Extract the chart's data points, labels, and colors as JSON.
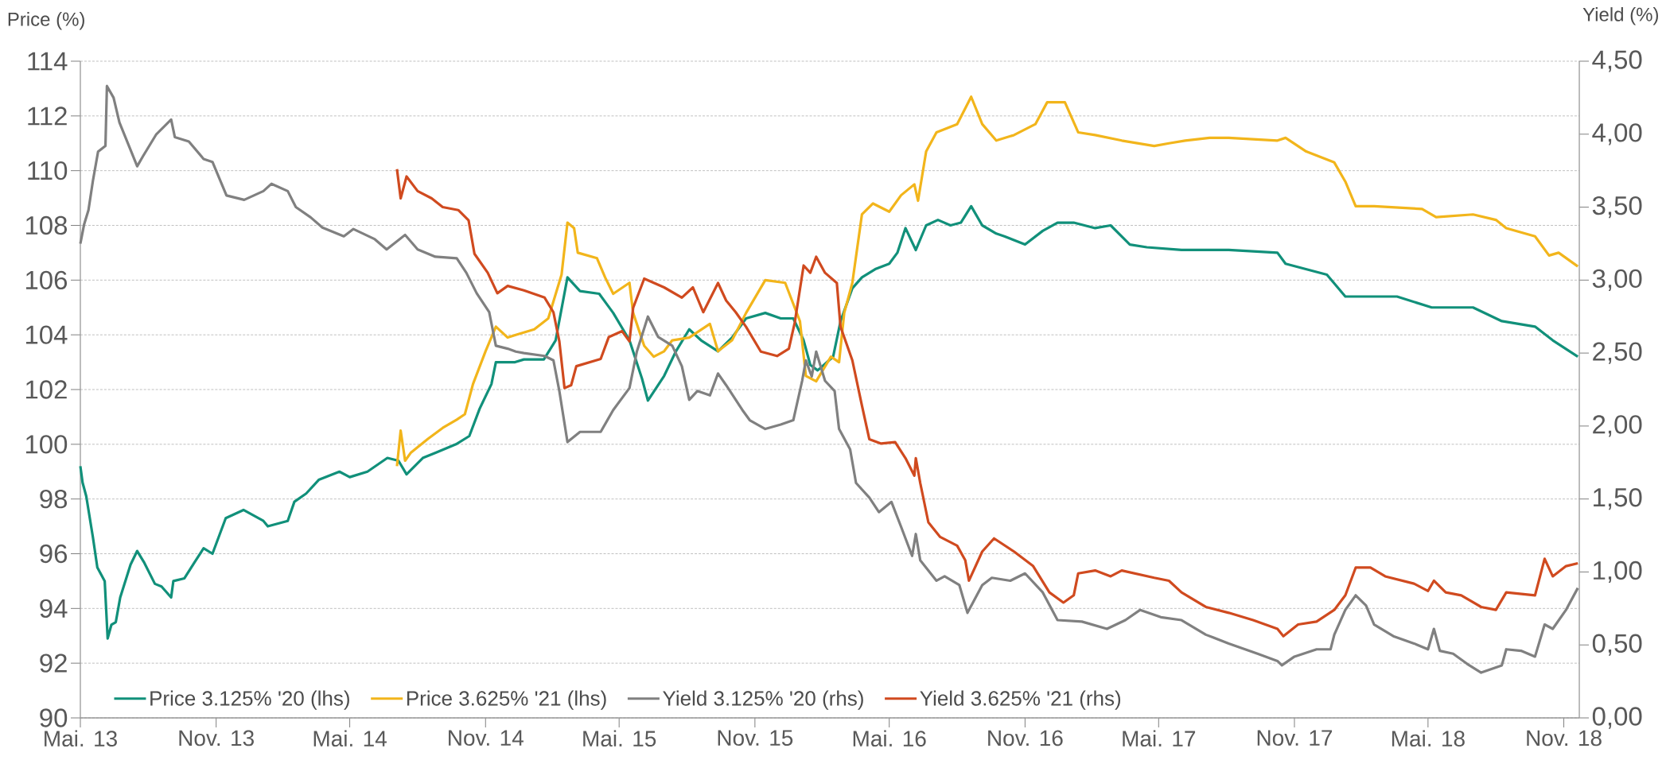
{
  "chart_data": {
    "type": "line",
    "ylabel": "Price (%)",
    "y2label": "Yield (%)",
    "xlim": [
      "2013-05-01",
      "2018-11-22"
    ],
    "xticks": [
      {
        "value": "2013-05-01",
        "label": "Mai. 13"
      },
      {
        "value": "2013-11-01",
        "label": "Nov. 13"
      },
      {
        "value": "2014-05-01",
        "label": "Mai. 14"
      },
      {
        "value": "2014-11-01",
        "label": "Nov. 14"
      },
      {
        "value": "2015-05-01",
        "label": "Mai. 15"
      },
      {
        "value": "2015-11-01",
        "label": "Nov. 15"
      },
      {
        "value": "2016-05-01",
        "label": "Mai. 16"
      },
      {
        "value": "2016-11-01",
        "label": "Nov. 16"
      },
      {
        "value": "2017-05-01",
        "label": "Mai. 17"
      },
      {
        "value": "2017-11-01",
        "label": "Nov. 17"
      },
      {
        "value": "2018-05-01",
        "label": "Mai. 18"
      },
      {
        "value": "2018-11-01",
        "label": "Nov. 18"
      }
    ],
    "ylim": [
      90,
      114
    ],
    "yticks": [
      90,
      92,
      94,
      96,
      98,
      100,
      102,
      104,
      106,
      108,
      110,
      112,
      114
    ],
    "y2lim": [
      0,
      4.5
    ],
    "y2ticks": [
      {
        "value": 0,
        "label": "0,00"
      },
      {
        "value": 0.5,
        "label": "0,50"
      },
      {
        "value": 1,
        "label": "1,00"
      },
      {
        "value": 1.5,
        "label": "1,50"
      },
      {
        "value": 2,
        "label": "2,00"
      },
      {
        "value": 2.5,
        "label": "2,50"
      },
      {
        "value": 3,
        "label": "3,00"
      },
      {
        "value": 3.5,
        "label": "3,50"
      },
      {
        "value": 4,
        "label": "4,00"
      },
      {
        "value": 4.5,
        "label": "4,50"
      }
    ],
    "grid": "y",
    "legend": "bottom left",
    "series": [
      {
        "name": "Price 3.125% '20 (lhs)",
        "color": "#11907a",
        "axis": "y",
        "x": [
          "2013-05-01",
          "2013-05-04",
          "2013-05-09",
          "2013-05-18",
          "2013-05-24",
          "2013-06-03",
          "2013-06-07",
          "2013-06-12",
          "2013-06-18",
          "2013-06-24",
          "2013-07-08",
          "2013-07-17",
          "2013-07-26",
          "2013-08-10",
          "2013-08-19",
          "2013-09-01",
          "2013-09-04",
          "2013-09-19",
          "2013-10-03",
          "2013-10-15",
          "2013-10-27",
          "2013-11-14",
          "2013-12-08",
          "2014-01-04",
          "2014-01-10",
          "2014-02-06",
          "2014-02-15",
          "2014-03-03",
          "2014-03-20",
          "2014-04-17",
          "2014-05-01",
          "2014-05-25",
          "2014-06-21",
          "2014-07-06",
          "2014-07-17",
          "2014-08-08",
          "2014-08-26",
          "2014-09-22",
          "2014-10-10",
          "2014-10-24",
          "2014-11-09",
          "2014-11-15",
          "2014-12-11",
          "2014-12-23",
          "2015-01-19",
          "2015-02-04",
          "2015-02-20",
          "2015-03-09",
          "2015-04-04",
          "2015-04-23",
          "2015-05-15",
          "2015-06-01",
          "2015-06-09",
          "2015-07-01",
          "2015-07-17",
          "2015-08-04",
          "2015-08-20",
          "2015-09-12",
          "2015-10-01",
          "2015-10-20",
          "2015-11-15",
          "2015-12-06",
          "2015-12-23",
          "2016-01-06",
          "2016-01-15",
          "2016-01-25",
          "2016-02-15",
          "2016-02-25",
          "2016-03-12",
          "2016-03-25",
          "2016-04-12",
          "2016-05-01",
          "2016-05-12",
          "2016-05-23",
          "2016-06-06",
          "2016-06-20",
          "2016-07-06",
          "2016-07-23",
          "2016-08-06",
          "2016-08-20",
          "2016-09-04",
          "2016-09-23",
          "2016-10-04",
          "2016-11-01",
          "2016-11-25",
          "2016-12-15",
          "2017-01-06",
          "2017-02-04",
          "2017-02-25",
          "2017-03-23",
          "2017-04-15",
          "2017-06-01",
          "2017-08-04",
          "2017-10-09",
          "2017-10-20",
          "2017-12-15",
          "2018-01-09",
          "2018-02-17",
          "2018-03-20",
          "2018-05-06",
          "2018-07-01",
          "2018-08-09",
          "2018-09-23",
          "2018-10-17",
          "2018-11-20"
        ],
        "values": [
          99.2,
          98.6,
          98.1,
          96.6,
          95.5,
          95.0,
          92.9,
          93.4,
          93.5,
          94.4,
          95.6,
          96.1,
          95.7,
          94.9,
          94.8,
          94.4,
          95.0,
          95.1,
          95.7,
          96.2,
          96.0,
          97.3,
          97.6,
          97.2,
          97.0,
          97.2,
          97.9,
          98.2,
          98.7,
          99.0,
          98.8,
          99.0,
          99.5,
          99.4,
          98.9,
          99.5,
          99.7,
          100.0,
          100.3,
          101.3,
          102.2,
          103.0,
          103.0,
          103.1,
          103.1,
          103.8,
          106.1,
          105.6,
          105.5,
          104.8,
          103.8,
          102.4,
          101.6,
          102.5,
          103.4,
          104.2,
          103.8,
          103.4,
          103.9,
          104.6,
          104.8,
          104.6,
          104.6,
          103.8,
          102.9,
          102.7,
          103.2,
          104.5,
          105.7,
          106.1,
          106.4,
          106.6,
          107.0,
          107.9,
          107.1,
          108.0,
          108.2,
          108.0,
          108.1,
          108.7,
          108.0,
          107.7,
          107.6,
          107.3,
          107.8,
          108.1,
          108.1,
          107.9,
          108.0,
          107.3,
          107.2,
          107.1,
          107.1,
          107.0,
          106.6,
          106.2,
          105.4,
          105.4,
          105.4,
          105.0,
          105.0,
          104.5,
          104.3,
          103.8,
          103.2
        ]
      },
      {
        "name": "Price 3.625% '21 (lhs)",
        "color": "#f2b51b",
        "axis": "y",
        "x": [
          "2014-07-04",
          "2014-07-09",
          "2014-07-15",
          "2014-07-23",
          "2014-08-15",
          "2014-09-04",
          "2014-09-23",
          "2014-10-04",
          "2014-10-15",
          "2014-11-01",
          "2014-11-15",
          "2014-12-01",
          "2014-12-12",
          "2015-01-06",
          "2015-01-25",
          "2015-02-12",
          "2015-02-20",
          "2015-03-01",
          "2015-03-06",
          "2015-04-01",
          "2015-04-12",
          "2015-04-23",
          "2015-05-15",
          "2015-05-20",
          "2015-06-04",
          "2015-06-17",
          "2015-07-01",
          "2015-07-12",
          "2015-08-04",
          "2015-09-01",
          "2015-09-12",
          "2015-10-01",
          "2015-10-20",
          "2015-11-15",
          "2015-12-12",
          "2016-01-01",
          "2016-01-09",
          "2016-01-23",
          "2016-02-12",
          "2016-02-23",
          "2016-03-01",
          "2016-03-12",
          "2016-03-25",
          "2016-04-09",
          "2016-05-01",
          "2016-05-17",
          "2016-06-04",
          "2016-06-09",
          "2016-06-20",
          "2016-07-04",
          "2016-08-01",
          "2016-08-20",
          "2016-09-04",
          "2016-09-23",
          "2016-10-17",
          "2016-11-15",
          "2016-12-01",
          "2016-12-25",
          "2017-01-12",
          "2017-02-04",
          "2017-03-12",
          "2017-04-25",
          "2017-05-15",
          "2017-06-06",
          "2017-07-09",
          "2017-08-04",
          "2017-10-09",
          "2017-10-20",
          "2017-11-17",
          "2017-12-25",
          "2018-01-09",
          "2018-01-23",
          "2018-02-17",
          "2018-04-23",
          "2018-05-12",
          "2018-07-01",
          "2018-08-01",
          "2018-08-15",
          "2018-09-23",
          "2018-10-12",
          "2018-10-25",
          "2018-11-20"
        ],
        "values": [
          99.2,
          100.5,
          99.4,
          99.7,
          100.2,
          100.6,
          100.9,
          101.1,
          102.2,
          103.4,
          104.3,
          103.9,
          104.0,
          104.2,
          104.6,
          106.2,
          108.1,
          107.9,
          107.0,
          106.8,
          106.1,
          105.5,
          105.9,
          104.8,
          103.6,
          103.2,
          103.4,
          103.8,
          103.9,
          104.4,
          103.4,
          103.8,
          104.8,
          106.0,
          105.9,
          104.5,
          102.5,
          102.3,
          103.2,
          103.0,
          104.8,
          105.9,
          108.4,
          108.8,
          108.5,
          109.1,
          109.5,
          108.9,
          110.7,
          111.4,
          111.7,
          112.7,
          111.7,
          111.1,
          111.3,
          111.7,
          112.5,
          112.5,
          111.4,
          111.3,
          111.1,
          110.9,
          111.0,
          111.1,
          111.2,
          111.2,
          111.1,
          111.2,
          110.7,
          110.3,
          109.6,
          108.7,
          108.7,
          108.6,
          108.3,
          108.4,
          108.2,
          107.9,
          107.6,
          106.9,
          107.0,
          106.5
        ]
      },
      {
        "name": "Yield 3.125% '20 (rhs)",
        "color": "#808080",
        "axis": "y2",
        "x": [
          "2013-05-01",
          "2013-05-06",
          "2013-05-12",
          "2013-05-18",
          "2013-05-25",
          "2013-06-04",
          "2013-06-06",
          "2013-06-15",
          "2013-06-23",
          "2013-07-09",
          "2013-07-17",
          "2013-07-25",
          "2013-08-12",
          "2013-09-01",
          "2013-09-06",
          "2013-09-25",
          "2013-10-15",
          "2013-10-27",
          "2013-11-15",
          "2013-12-09",
          "2014-01-04",
          "2014-01-15",
          "2014-02-06",
          "2014-02-17",
          "2014-03-09",
          "2014-03-25",
          "2014-04-23",
          "2014-05-06",
          "2014-06-04",
          "2014-06-20",
          "2014-07-15",
          "2014-08-01",
          "2014-08-25",
          "2014-09-23",
          "2014-10-06",
          "2014-10-20",
          "2014-11-06",
          "2014-11-15",
          "2014-12-01",
          "2014-12-12",
          "2014-12-23",
          "2015-01-20",
          "2015-02-01",
          "2015-02-09",
          "2015-02-20",
          "2015-03-09",
          "2015-04-06",
          "2015-04-23",
          "2015-05-15",
          "2015-05-25",
          "2015-06-09",
          "2015-06-23",
          "2015-07-12",
          "2015-07-25",
          "2015-08-04",
          "2015-08-15",
          "2015-09-01",
          "2015-09-12",
          "2015-09-23",
          "2015-10-15",
          "2015-10-25",
          "2015-11-15",
          "2015-12-06",
          "2015-12-23",
          "2016-01-04",
          "2016-01-09",
          "2016-01-17",
          "2016-01-23",
          "2016-02-04",
          "2016-02-17",
          "2016-02-23",
          "2016-03-09",
          "2016-03-17",
          "2016-04-04",
          "2016-04-17",
          "2016-05-04",
          "2016-05-17",
          "2016-06-01",
          "2016-06-06",
          "2016-06-12",
          "2016-07-04",
          "2016-07-15",
          "2016-08-04",
          "2016-08-15",
          "2016-09-04",
          "2016-09-17",
          "2016-10-12",
          "2016-11-01",
          "2016-11-25",
          "2016-12-15",
          "2017-01-17",
          "2017-02-20",
          "2017-03-17",
          "2017-04-06",
          "2017-05-04",
          "2017-06-01",
          "2017-07-04",
          "2017-08-04",
          "2017-09-12",
          "2017-10-09",
          "2017-10-15",
          "2017-11-01",
          "2017-12-01",
          "2017-12-20",
          "2017-12-25",
          "2018-01-09",
          "2018-01-23",
          "2018-02-06",
          "2018-02-17",
          "2018-03-15",
          "2018-04-12",
          "2018-05-01",
          "2018-05-09",
          "2018-05-17",
          "2018-06-04",
          "2018-06-23",
          "2018-07-12",
          "2018-08-09",
          "2018-08-15",
          "2018-09-04",
          "2018-09-23",
          "2018-10-06",
          "2018-10-17",
          "2018-11-04",
          "2018-11-20"
        ],
        "values": [
          3.25,
          3.38,
          3.48,
          3.68,
          3.88,
          3.92,
          4.33,
          4.25,
          4.08,
          3.88,
          3.78,
          3.85,
          4.0,
          4.1,
          3.98,
          3.95,
          3.83,
          3.81,
          3.58,
          3.55,
          3.61,
          3.66,
          3.61,
          3.5,
          3.43,
          3.36,
          3.3,
          3.35,
          3.28,
          3.21,
          3.31,
          3.21,
          3.16,
          3.15,
          3.05,
          2.91,
          2.78,
          2.55,
          2.53,
          2.51,
          2.5,
          2.48,
          2.45,
          2.24,
          1.89,
          1.96,
          1.96,
          2.11,
          2.26,
          2.51,
          2.75,
          2.61,
          2.55,
          2.41,
          2.18,
          2.24,
          2.21,
          2.36,
          2.28,
          2.11,
          2.04,
          1.98,
          2.01,
          2.04,
          2.31,
          2.45,
          2.34,
          2.51,
          2.31,
          2.24,
          1.98,
          1.84,
          1.61,
          1.51,
          1.41,
          1.48,
          1.31,
          1.11,
          1.26,
          1.08,
          0.94,
          0.97,
          0.91,
          0.72,
          0.91,
          0.96,
          0.94,
          0.99,
          0.86,
          0.67,
          0.66,
          0.61,
          0.67,
          0.74,
          0.69,
          0.67,
          0.57,
          0.51,
          0.44,
          0.39,
          0.36,
          0.42,
          0.47,
          0.47,
          0.57,
          0.74,
          0.84,
          0.77,
          0.64,
          0.56,
          0.51,
          0.47,
          0.61,
          0.46,
          0.44,
          0.37,
          0.31,
          0.36,
          0.47,
          0.46,
          0.42,
          0.64,
          0.61,
          0.74,
          0.89
        ]
      },
      {
        "name": "Yield 3.625% '21 (rhs)",
        "color": "#d04a1f",
        "axis": "y2",
        "x": [
          "2014-07-04",
          "2014-07-09",
          "2014-07-17",
          "2014-08-01",
          "2014-08-20",
          "2014-09-04",
          "2014-09-25",
          "2014-10-09",
          "2014-10-17",
          "2014-11-04",
          "2014-11-17",
          "2014-12-01",
          "2014-12-23",
          "2015-01-20",
          "2015-02-01",
          "2015-02-09",
          "2015-02-16",
          "2015-02-25",
          "2015-03-04",
          "2015-04-06",
          "2015-04-17",
          "2015-05-05",
          "2015-05-15",
          "2015-05-20",
          "2015-06-04",
          "2015-07-01",
          "2015-07-25",
          "2015-08-09",
          "2015-08-23",
          "2015-09-12",
          "2015-09-23",
          "2015-10-06",
          "2015-10-20",
          "2015-11-09",
          "2015-12-01",
          "2015-12-17",
          "2015-12-25",
          "2016-01-06",
          "2016-01-15",
          "2016-01-23",
          "2016-02-04",
          "2016-02-20",
          "2016-02-25",
          "2016-03-12",
          "2016-03-25",
          "2016-04-04",
          "2016-04-20",
          "2016-05-09",
          "2016-05-23",
          "2016-06-04",
          "2016-06-06",
          "2016-06-12",
          "2016-06-23",
          "2016-07-09",
          "2016-08-01",
          "2016-08-12",
          "2016-08-17",
          "2016-09-04",
          "2016-09-20",
          "2016-10-17",
          "2016-11-12",
          "2016-12-04",
          "2016-12-23",
          "2017-01-06",
          "2017-01-12",
          "2017-02-04",
          "2017-02-25",
          "2017-03-12",
          "2017-04-25",
          "2017-05-15",
          "2017-06-01",
          "2017-07-04",
          "2017-08-04",
          "2017-09-06",
          "2017-10-09",
          "2017-10-17",
          "2017-11-06",
          "2017-12-01",
          "2017-12-25",
          "2018-01-09",
          "2018-01-23",
          "2018-02-12",
          "2018-03-04",
          "2018-04-12",
          "2018-05-01",
          "2018-05-09",
          "2018-05-25",
          "2018-06-15",
          "2018-07-12",
          "2018-08-01",
          "2018-08-15",
          "2018-09-23",
          "2018-10-06",
          "2018-10-17",
          "2018-11-04",
          "2018-11-20"
        ],
        "values": [
          3.76,
          3.56,
          3.71,
          3.61,
          3.56,
          3.5,
          3.48,
          3.41,
          3.18,
          3.05,
          2.91,
          2.96,
          2.93,
          2.88,
          2.78,
          2.58,
          2.26,
          2.28,
          2.41,
          2.46,
          2.61,
          2.65,
          2.58,
          2.81,
          3.01,
          2.95,
          2.88,
          2.95,
          2.78,
          2.98,
          2.86,
          2.78,
          2.68,
          2.51,
          2.48,
          2.53,
          2.71,
          3.1,
          3.05,
          3.16,
          3.05,
          2.98,
          2.68,
          2.45,
          2.14,
          1.91,
          1.88,
          1.89,
          1.78,
          1.66,
          1.78,
          1.61,
          1.34,
          1.24,
          1.18,
          1.08,
          0.94,
          1.14,
          1.23,
          1.14,
          1.04,
          0.86,
          0.79,
          0.84,
          0.99,
          1.01,
          0.97,
          1.01,
          0.96,
          0.94,
          0.86,
          0.76,
          0.72,
          0.67,
          0.61,
          0.56,
          0.64,
          0.66,
          0.74,
          0.84,
          1.03,
          1.03,
          0.97,
          0.92,
          0.87,
          0.94,
          0.86,
          0.84,
          0.76,
          0.74,
          0.86,
          0.84,
          1.09,
          0.97,
          1.04,
          1.06
        ]
      }
    ]
  }
}
